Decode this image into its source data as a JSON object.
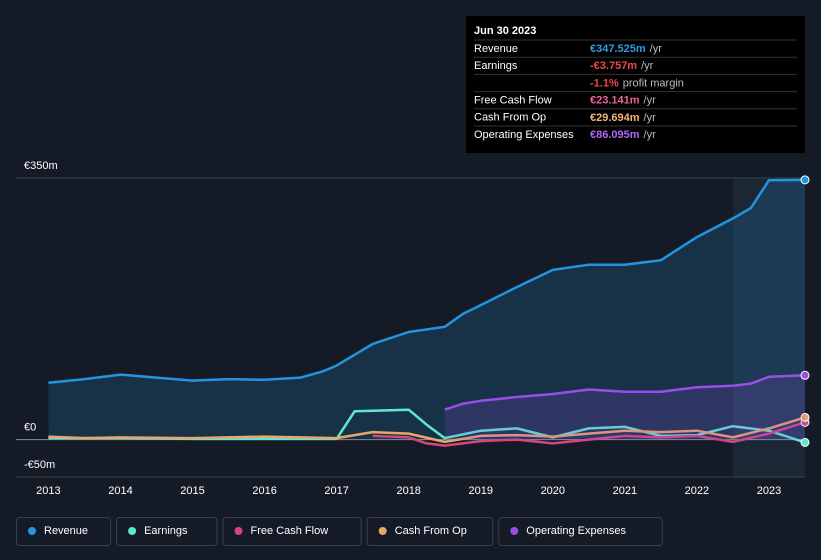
{
  "chart_data": {
    "type": "line",
    "yticks": [
      {
        "value": 350,
        "label": "€350m"
      },
      {
        "value": 0,
        "label": "€0"
      },
      {
        "value": -50,
        "label": "-€50m"
      }
    ],
    "ylim": [
      -50,
      350
    ],
    "xlim": [
      2012.55,
      2023.5
    ],
    "xticks": [
      2013,
      2014,
      2015,
      2016,
      2017,
      2018,
      2019,
      2020,
      2021,
      2022,
      2023
    ],
    "highlight_from": 2022.5,
    "series": [
      {
        "name": "Revenue",
        "color": "#2394df",
        "area": true,
        "x": [
          2013,
          2013.5,
          2014,
          2014.5,
          2015,
          2015.5,
          2016,
          2016.5,
          2016.8,
          2017,
          2017.5,
          2018,
          2018.5,
          2018.75,
          2019,
          2019.5,
          2020,
          2020.5,
          2021,
          2021.5,
          2022,
          2022.5,
          2022.75,
          2023,
          2023.5
        ],
        "values": [
          76,
          81,
          87,
          83,
          79,
          81,
          80,
          83,
          91,
          99,
          128,
          144,
          151,
          168,
          180,
          204,
          227,
          234,
          234,
          240,
          271,
          296,
          310,
          347,
          347.525
        ]
      },
      {
        "name": "Earnings",
        "color": "#5ee8d0",
        "x": [
          2013,
          2014,
          2015,
          2016,
          2017,
          2017.25,
          2018,
          2018.25,
          2018.5,
          2019,
          2019.5,
          2020,
          2020.5,
          2021,
          2021.5,
          2022,
          2022.5,
          2023,
          2023.5
        ],
        "values": [
          2,
          2,
          1,
          1,
          1,
          38,
          40,
          20,
          2,
          12,
          15,
          3,
          15,
          17,
          5,
          6,
          18,
          12,
          -3.757
        ]
      },
      {
        "name": "Free Cash Flow",
        "color": "#d6457f",
        "x": [
          2017.5,
          2018,
          2018.25,
          2018.5,
          2019,
          2019.5,
          2020,
          2020.5,
          2021,
          2021.5,
          2022,
          2022.5,
          2023,
          2023.5
        ],
        "values": [
          5,
          3,
          -5,
          -8,
          -2,
          0,
          -5,
          0,
          5,
          3,
          5,
          -3,
          8,
          23.141
        ]
      },
      {
        "name": "Cash From Op",
        "color": "#e8a765",
        "x": [
          2013,
          2013.5,
          2014,
          2015,
          2016,
          2017,
          2017.5,
          2018,
          2018.5,
          2019,
          2019.5,
          2020,
          2020.5,
          2021,
          2021.5,
          2022,
          2022.5,
          2023,
          2023.5
        ],
        "values": [
          4,
          2,
          3,
          2,
          4,
          2,
          10,
          8,
          -3,
          5,
          6,
          4,
          8,
          12,
          10,
          12,
          3,
          15,
          29.694
        ]
      },
      {
        "name": "Operating Expenses",
        "color": "#9b4de8",
        "area": true,
        "x": [
          2018.5,
          2018.75,
          2019,
          2019.5,
          2020,
          2020.5,
          2021,
          2021.5,
          2022,
          2022.5,
          2022.75,
          2023,
          2023.5
        ],
        "values": [
          40,
          48,
          52,
          57,
          61,
          67,
          64,
          64,
          70,
          72,
          75,
          84,
          86.095
        ]
      }
    ],
    "tooltip": {
      "date": "Jun 30 2023",
      "rows": [
        {
          "label": "Revenue",
          "value": "€347.525m",
          "suffix": "/yr",
          "color": "#2d9be5"
        },
        {
          "label": "Earnings",
          "value": "-€3.757m",
          "suffix": "/yr",
          "color": "#f04848"
        },
        {
          "label": null,
          "value": "-1.1%",
          "suffix": "profit margin",
          "color": "#f04848"
        },
        {
          "label": "Free Cash Flow",
          "value": "€23.141m",
          "suffix": "/yr",
          "color": "#e8649c"
        },
        {
          "label": "Cash From Op",
          "value": "€29.694m",
          "suffix": "/yr",
          "color": "#f3b675"
        },
        {
          "label": "Operating Expenses",
          "value": "€86.095m",
          "suffix": "/yr",
          "color": "#b066f5"
        }
      ]
    }
  }
}
